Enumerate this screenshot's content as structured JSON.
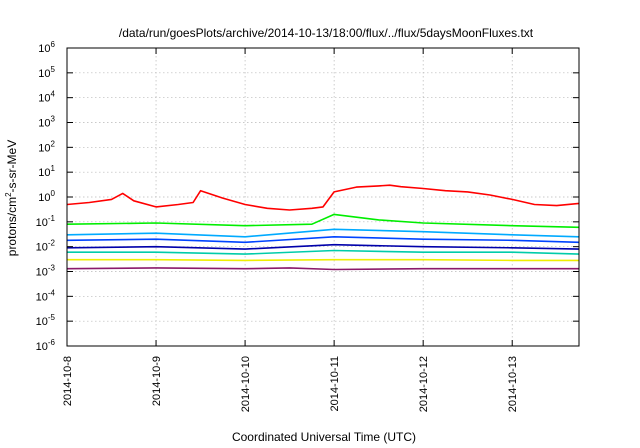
{
  "chart_data": {
    "type": "line",
    "title": "/data/run/goesPlots/archive/2014-10-13/18:00/flux/../flux/5daysMoonFluxes.txt",
    "xlabel": "Coordinated Universal Time (UTC)",
    "ylabel": {
      "pre": "protons/cm",
      "sup": "2",
      "post": "-s-sr-MeV"
    },
    "y_scale": "log",
    "ylim": [
      1e-06,
      1000000.0
    ],
    "y_ticks": [
      {
        "base": "10",
        "exp": "-6"
      },
      {
        "base": "10",
        "exp": "-5"
      },
      {
        "base": "10",
        "exp": "-4"
      },
      {
        "base": "10",
        "exp": "-3"
      },
      {
        "base": "10",
        "exp": "-2"
      },
      {
        "base": "10",
        "exp": "-1"
      },
      {
        "base": "10",
        "exp": "0"
      },
      {
        "base": "10",
        "exp": "1"
      },
      {
        "base": "10",
        "exp": "2"
      },
      {
        "base": "10",
        "exp": "3"
      },
      {
        "base": "10",
        "exp": "4"
      },
      {
        "base": "10",
        "exp": "5"
      },
      {
        "base": "10",
        "exp": "6"
      }
    ],
    "xlim": [
      "2014-10-08T00:00",
      "2014-10-13T18:00"
    ],
    "x_ticks": [
      "2014-10-8",
      "2014-10-9",
      "2014-10-10",
      "2014-10-11",
      "2014-10-12",
      "2014-10-13"
    ],
    "grid": true,
    "series": [
      {
        "color": "#ff0000",
        "x": [
          "2014-10-08T00:00",
          "2014-10-08T06:00",
          "2014-10-08T12:00",
          "2014-10-08T15:00",
          "2014-10-08T18:00",
          "2014-10-09T00:00",
          "2014-10-09T06:00",
          "2014-10-09T10:00",
          "2014-10-09T12:00",
          "2014-10-09T18:00",
          "2014-10-10T00:00",
          "2014-10-10T06:00",
          "2014-10-10T12:00",
          "2014-10-10T18:00",
          "2014-10-10T21:00",
          "2014-10-11T00:00",
          "2014-10-11T06:00",
          "2014-10-11T12:00",
          "2014-10-11T15:00",
          "2014-10-11T18:00",
          "2014-10-12T00:00",
          "2014-10-12T06:00",
          "2014-10-12T12:00",
          "2014-10-12T18:00",
          "2014-10-13T00:00",
          "2014-10-13T06:00",
          "2014-10-13T12:00",
          "2014-10-13T18:00"
        ],
        "y": [
          0.5,
          0.6,
          0.8,
          1.4,
          0.7,
          0.4,
          0.5,
          0.6,
          1.8,
          0.9,
          0.5,
          0.35,
          0.3,
          0.35,
          0.4,
          1.6,
          2.5,
          2.8,
          3.0,
          2.6,
          2.2,
          1.8,
          1.6,
          1.2,
          0.8,
          0.5,
          0.45,
          0.55
        ]
      },
      {
        "color": "#00ee00",
        "x": [
          "2014-10-08T00:00",
          "2014-10-09T00:00",
          "2014-10-10T00:00",
          "2014-10-10T18:00",
          "2014-10-11T00:00",
          "2014-10-11T12:00",
          "2014-10-12T00:00",
          "2014-10-13T00:00",
          "2014-10-13T18:00"
        ],
        "y": [
          0.08,
          0.09,
          0.07,
          0.08,
          0.2,
          0.12,
          0.09,
          0.07,
          0.06
        ]
      },
      {
        "color": "#00aaff",
        "x": [
          "2014-10-08T00:00",
          "2014-10-09T00:00",
          "2014-10-10T00:00",
          "2014-10-11T00:00",
          "2014-10-12T00:00",
          "2014-10-13T00:00",
          "2014-10-13T18:00"
        ],
        "y": [
          0.03,
          0.035,
          0.025,
          0.05,
          0.04,
          0.03,
          0.025
        ]
      },
      {
        "color": "#0044ff",
        "x": [
          "2014-10-08T00:00",
          "2014-10-09T00:00",
          "2014-10-10T00:00",
          "2014-10-11T00:00",
          "2014-10-12T00:00",
          "2014-10-13T00:00",
          "2014-10-13T18:00"
        ],
        "y": [
          0.018,
          0.02,
          0.015,
          0.025,
          0.02,
          0.018,
          0.015
        ]
      },
      {
        "color": "#0000aa",
        "x": [
          "2014-10-08T00:00",
          "2014-10-09T00:00",
          "2014-10-10T00:00",
          "2014-10-11T00:00",
          "2014-10-12T00:00",
          "2014-10-13T00:00",
          "2014-10-13T18:00"
        ],
        "y": [
          0.009,
          0.01,
          0.008,
          0.012,
          0.01,
          0.009,
          0.008
        ]
      },
      {
        "color": "#00ccaa",
        "x": [
          "2014-10-08T00:00",
          "2014-10-09T00:00",
          "2014-10-10T00:00",
          "2014-10-11T00:00",
          "2014-10-12T00:00",
          "2014-10-13T00:00",
          "2014-10-13T18:00"
        ],
        "y": [
          0.006,
          0.006,
          0.005,
          0.007,
          0.006,
          0.006,
          0.005
        ]
      },
      {
        "color": "#eeee00",
        "x": [
          "2014-10-08T00:00",
          "2014-10-09T00:00",
          "2014-10-10T00:00",
          "2014-10-11T00:00",
          "2014-10-12T00:00",
          "2014-10-13T00:00",
          "2014-10-13T18:00"
        ],
        "y": [
          0.003,
          0.003,
          0.0028,
          0.003,
          0.003,
          0.0028,
          0.0028
        ]
      },
      {
        "color": "#8b1a6b",
        "x": [
          "2014-10-08T00:00",
          "2014-10-09T00:00",
          "2014-10-10T00:00",
          "2014-10-10T12:00",
          "2014-10-11T00:00",
          "2014-10-12T00:00",
          "2014-10-13T00:00",
          "2014-10-13T18:00"
        ],
        "y": [
          0.0013,
          0.0014,
          0.0013,
          0.0014,
          0.0012,
          0.0013,
          0.0013,
          0.0013
        ]
      }
    ]
  }
}
